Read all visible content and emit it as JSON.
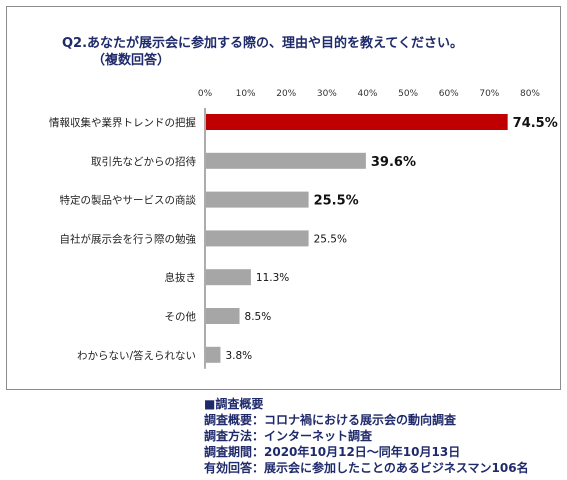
{
  "question": {
    "title": "Q2.あなたが展示会に参加する際の、理由や目的を教えてください。",
    "subtitle": "（複数回答）"
  },
  "chart_data": {
    "type": "bar",
    "orientation": "horizontal",
    "categories": [
      "情報収集や業界トレンドの把握",
      "取引先などからの招待",
      "特定の製品やサービスの商談",
      "自社が展示会を行う際の勉強",
      "息抜き",
      "その他",
      "わからない/答えられない"
    ],
    "values": [
      74.5,
      39.6,
      25.5,
      25.5,
      11.3,
      8.5,
      3.8
    ],
    "value_labels": [
      "74.5%",
      "39.6%",
      "25.5%",
      "25.5%",
      "11.3%",
      "8.5%",
      "3.8%"
    ],
    "emphasized_labels": [
      true,
      true,
      true,
      false,
      false,
      false,
      false
    ],
    "highlight_index": 0,
    "xlim": [
      0,
      80
    ],
    "xticks": [
      "0%",
      "10%",
      "20%",
      "30%",
      "40%",
      "50%",
      "60%",
      "70%",
      "80%"
    ],
    "colors": {
      "highlight": "#c00000",
      "default": "#a6a6a6",
      "axis": "#595959"
    }
  },
  "survey": {
    "heading": "■調査概要",
    "lines": [
      "調査概要：コロナ禍における展示会の動向調査",
      "調査方法：インターネット調査",
      "調査期間：2020年10月12日～同年10月13日",
      "有効回答：展示会に参加したことのあるビジネスマン106名"
    ]
  }
}
